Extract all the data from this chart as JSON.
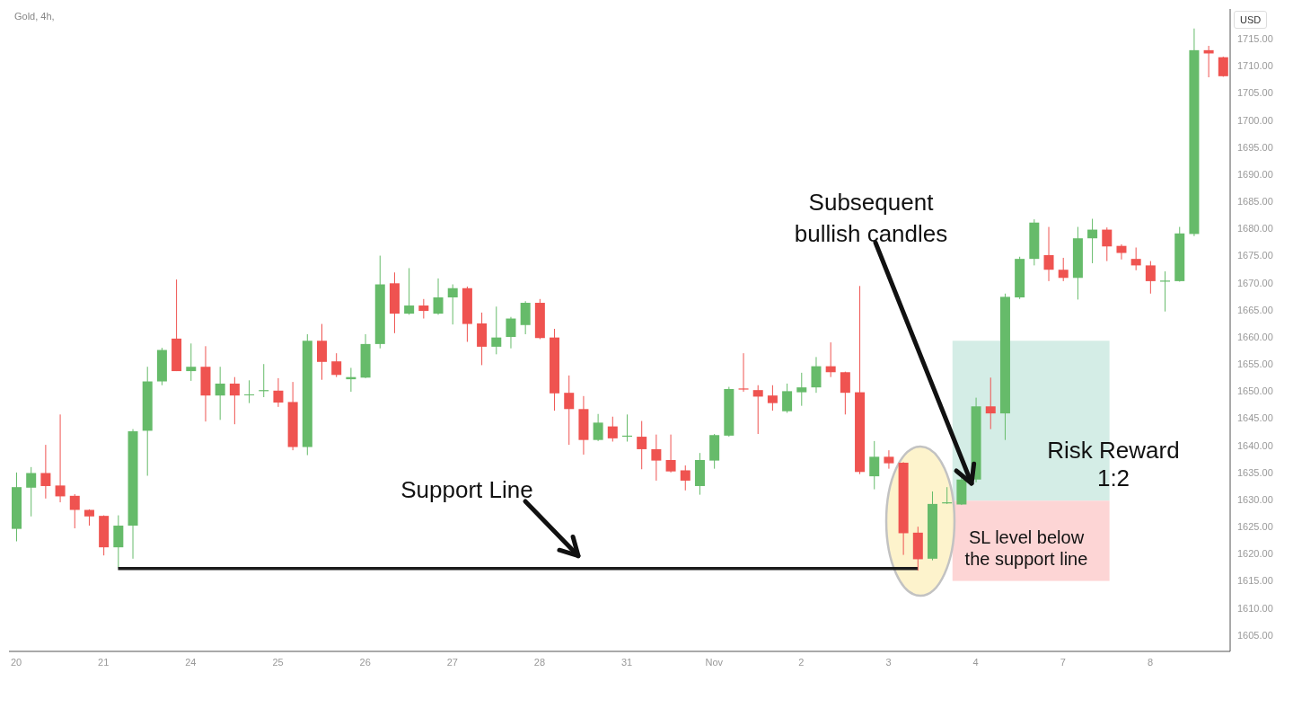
{
  "chart_data": {
    "type": "candlestick",
    "title": "Gold, 4h,",
    "ylabel": "USD",
    "categories": [
      "20",
      null,
      null,
      null,
      null,
      null,
      "21",
      null,
      null,
      null,
      null,
      null,
      "24",
      null,
      null,
      null,
      null,
      null,
      "25",
      null,
      null,
      null,
      null,
      null,
      "26",
      null,
      null,
      null,
      null,
      null,
      "27",
      null,
      null,
      null,
      null,
      null,
      "28",
      null,
      null,
      null,
      null,
      null,
      "31",
      null,
      null,
      null,
      null,
      null,
      "Nov",
      null,
      null,
      null,
      null,
      null,
      "2",
      null,
      null,
      null,
      null,
      null,
      "3",
      null,
      null,
      null,
      null,
      null,
      "4",
      null,
      null,
      null,
      null,
      null,
      "7",
      null,
      null,
      null,
      null,
      null,
      "8",
      null,
      null,
      null,
      null,
      null
    ],
    "ohlc": [
      [
        1624.6,
        1635.0,
        1622.3,
        1632.3
      ],
      [
        1632.2,
        1636.0,
        1626.9,
        1634.9
      ],
      [
        1634.9,
        1640.1,
        1630.2,
        1632.5
      ],
      [
        1632.6,
        1645.7,
        1629.5,
        1630.6
      ],
      [
        1630.7,
        1631.0,
        1624.7,
        1628.1
      ],
      [
        1628.1,
        1628.2,
        1625.2,
        1626.9
      ],
      [
        1627.0,
        1627.1,
        1619.7,
        1621.2
      ],
      [
        1621.2,
        1627.1,
        1617.5,
        1625.2
      ],
      [
        1625.2,
        1643.0,
        1619.1,
        1642.6
      ],
      [
        1642.7,
        1654.5,
        1634.4,
        1651.8
      ],
      [
        1651.8,
        1658.0,
        1651.1,
        1657.6
      ],
      [
        1659.7,
        1670.6,
        1653.7,
        1653.7
      ],
      [
        1653.7,
        1658.8,
        1651.9,
        1654.5
      ],
      [
        1654.5,
        1658.3,
        1644.4,
        1649.2
      ],
      [
        1649.2,
        1654.5,
        1644.7,
        1651.4
      ],
      [
        1651.4,
        1652.6,
        1643.9,
        1649.2
      ],
      [
        1649.3,
        1652.0,
        1647.8,
        1649.4
      ],
      [
        1650.0,
        1655.0,
        1648.9,
        1650.2
      ],
      [
        1650.1,
        1652.4,
        1647.1,
        1647.9
      ],
      [
        1648.0,
        1651.7,
        1639.1,
        1639.7
      ],
      [
        1639.7,
        1660.5,
        1638.2,
        1659.3
      ],
      [
        1659.3,
        1662.4,
        1652.1,
        1655.4
      ],
      [
        1655.5,
        1657.0,
        1652.6,
        1653.0
      ],
      [
        1652.2,
        1654.3,
        1649.9,
        1652.6
      ],
      [
        1652.5,
        1660.5,
        1652.4,
        1658.7
      ],
      [
        1658.7,
        1675.0,
        1657.9,
        1669.7
      ],
      [
        1669.9,
        1671.9,
        1660.7,
        1664.3
      ],
      [
        1664.3,
        1672.7,
        1664.1,
        1665.8
      ],
      [
        1665.8,
        1667.0,
        1663.4,
        1664.8
      ],
      [
        1664.3,
        1670.8,
        1664.1,
        1667.3
      ],
      [
        1667.3,
        1669.7,
        1662.3,
        1669.0
      ],
      [
        1669.0,
        1669.3,
        1659.1,
        1662.4
      ],
      [
        1662.5,
        1664.5,
        1654.8,
        1658.2
      ],
      [
        1658.2,
        1665.6,
        1656.8,
        1659.9
      ],
      [
        1660.0,
        1663.7,
        1657.9,
        1663.4
      ],
      [
        1662.2,
        1666.6,
        1660.5,
        1666.3
      ],
      [
        1666.3,
        1667.0,
        1659.6,
        1659.8
      ],
      [
        1659.9,
        1661.5,
        1646.4,
        1649.6
      ],
      [
        1649.7,
        1652.9,
        1640.1,
        1646.7
      ],
      [
        1646.7,
        1649.1,
        1638.3,
        1641.0
      ],
      [
        1641.0,
        1645.8,
        1640.8,
        1644.2
      ],
      [
        1643.5,
        1645.3,
        1640.7,
        1641.3
      ],
      [
        1641.6,
        1645.7,
        1640.7,
        1641.8
      ],
      [
        1641.6,
        1644.5,
        1635.6,
        1639.3
      ],
      [
        1639.3,
        1642.0,
        1633.5,
        1637.2
      ],
      [
        1637.3,
        1642.0,
        1635.0,
        1635.2
      ],
      [
        1635.4,
        1636.3,
        1631.7,
        1633.5
      ],
      [
        1632.5,
        1638.6,
        1630.9,
        1637.3
      ],
      [
        1637.2,
        1642.1,
        1635.7,
        1641.9
      ],
      [
        1641.8,
        1650.8,
        1641.6,
        1650.4
      ],
      [
        1650.5,
        1657.0,
        1649.9,
        1650.3
      ],
      [
        1650.2,
        1651.1,
        1642.1,
        1649.0
      ],
      [
        1649.2,
        1651.1,
        1646.4,
        1647.8
      ],
      [
        1646.3,
        1651.4,
        1646.0,
        1650.0
      ],
      [
        1649.8,
        1653.4,
        1647.3,
        1650.7
      ],
      [
        1650.7,
        1656.3,
        1649.7,
        1654.6
      ],
      [
        1654.6,
        1659.0,
        1652.6,
        1653.5
      ],
      [
        1653.5,
        1653.6,
        1645.7,
        1649.7
      ],
      [
        1649.8,
        1669.4,
        1634.7,
        1635.1
      ],
      [
        1634.3,
        1640.8,
        1631.9,
        1637.9
      ],
      [
        1637.9,
        1639.1,
        1635.7,
        1636.7
      ],
      [
        1636.8,
        1636.9,
        1619.8,
        1623.8
      ],
      [
        1623.9,
        1625.0,
        1616.9,
        1619.0
      ],
      [
        1619.1,
        1631.5,
        1618.8,
        1629.2
      ],
      [
        1629.3,
        1632.3,
        1629.2,
        1629.5
      ],
      [
        1629.1,
        1634.0,
        1629.0,
        1633.7
      ],
      [
        1633.7,
        1648.8,
        1633.2,
        1647.2
      ],
      [
        1647.2,
        1652.5,
        1643.0,
        1645.9
      ],
      [
        1645.9,
        1668.0,
        1641.0,
        1667.4
      ],
      [
        1667.3,
        1674.8,
        1667.0,
        1674.4
      ],
      [
        1674.4,
        1681.7,
        1673.2,
        1681.1
      ],
      [
        1675.1,
        1680.3,
        1670.3,
        1672.4
      ],
      [
        1672.4,
        1674.6,
        1670.3,
        1670.9
      ],
      [
        1670.9,
        1680.3,
        1666.9,
        1678.2
      ],
      [
        1678.2,
        1681.8,
        1673.6,
        1679.8
      ],
      [
        1679.8,
        1680.2,
        1674.0,
        1676.7
      ],
      [
        1676.8,
        1677.1,
        1674.3,
        1675.5
      ],
      [
        1674.4,
        1676.5,
        1672.3,
        1673.2
      ],
      [
        1673.2,
        1674.0,
        1668.0,
        1670.3
      ],
      [
        1670.2,
        1672.1,
        1664.7,
        1670.4
      ],
      [
        1670.3,
        1680.3,
        1670.2,
        1679.1
      ],
      [
        1679.0,
        1716.9,
        1678.6,
        1712.9
      ],
      [
        1712.9,
        1713.7,
        1707.9,
        1712.3
      ],
      [
        1711.6,
        1711.7,
        1708.0,
        1708.1
      ]
    ],
    "series": [
      {
        "type": "line",
        "color": "#1c1c1c",
        "values": [
          null,
          null,
          null,
          null,
          null,
          null,
          null,
          1617.3,
          1617.3,
          1617.3,
          1617.3,
          1617.3,
          1617.3,
          1617.3,
          1617.3,
          1617.3,
          1617.3,
          1617.3,
          1617.3,
          1617.3,
          1617.3,
          1617.3,
          1617.3,
          1617.3,
          1617.3,
          1617.3,
          1617.3,
          1617.3,
          1617.3,
          1617.3,
          1617.3,
          1617.3,
          1617.3,
          1617.3,
          1617.3,
          1617.3,
          1617.3,
          1617.3,
          1617.3,
          1617.3,
          1617.3,
          1617.3,
          1617.3,
          1617.3,
          1617.3,
          1617.3,
          1617.3,
          1617.3,
          1617.3,
          1617.3,
          1617.3,
          1617.3,
          1617.3,
          1617.3,
          1617.3,
          1617.3,
          1617.3,
          1617.3,
          1617.3,
          1617.3,
          1617.3,
          1617.3,
          1617.3,
          null,
          null,
          null,
          null,
          null,
          null,
          null,
          null,
          null,
          null,
          null,
          null,
          null,
          null,
          null,
          null,
          null,
          null,
          null,
          null,
          null
        ]
      }
    ],
    "bands": [
      {
        "axis": "y",
        "from": 1629.8,
        "to": 1659.3,
        "label": "Risk Reward 1:2",
        "color": "#d4ede6"
      },
      {
        "axis": "y",
        "from": 1615.0,
        "to": 1629.8,
        "label": "SL level below the support line",
        "color": "#fdd5d5"
      }
    ],
    "annotations": [
      "Subsequent bullish candles",
      {
        "text": "Support Line",
        "y": 1617.3
      }
    ],
    "ylim": [
      1602,
      1720.5
    ],
    "yticks": [
      {
        "value": 1605,
        "label": "1605.00"
      },
      {
        "value": 1610,
        "label": "1610.00"
      },
      {
        "value": 1615,
        "label": "1615.00"
      },
      {
        "value": 1620,
        "label": "1620.00"
      },
      {
        "value": 1625,
        "label": "1625.00"
      },
      {
        "value": 1630,
        "label": "1630.00"
      },
      {
        "value": 1635,
        "label": "1635.00"
      },
      {
        "value": 1640,
        "label": "1640.00"
      },
      {
        "value": 1645,
        "label": "1645.00"
      },
      {
        "value": 1650,
        "label": "1650.00"
      },
      {
        "value": 1655,
        "label": "1655.00"
      },
      {
        "value": 1660,
        "label": "1660.00"
      },
      {
        "value": 1665,
        "label": "1665.00"
      },
      {
        "value": 1670,
        "label": "1670.00"
      },
      {
        "value": 1675,
        "label": "1675.00"
      },
      {
        "value": 1680,
        "label": "1680.00"
      },
      {
        "value": 1685,
        "label": "1685.00"
      },
      {
        "value": 1690,
        "label": "1690.00"
      },
      {
        "value": 1695,
        "label": "1695.00"
      },
      {
        "value": 1700,
        "label": "1700.00"
      },
      {
        "value": 1705,
        "label": "1705.00"
      },
      {
        "value": 1710,
        "label": "1710.00"
      },
      {
        "value": 1715,
        "label": "1715.00"
      }
    ]
  }
}
